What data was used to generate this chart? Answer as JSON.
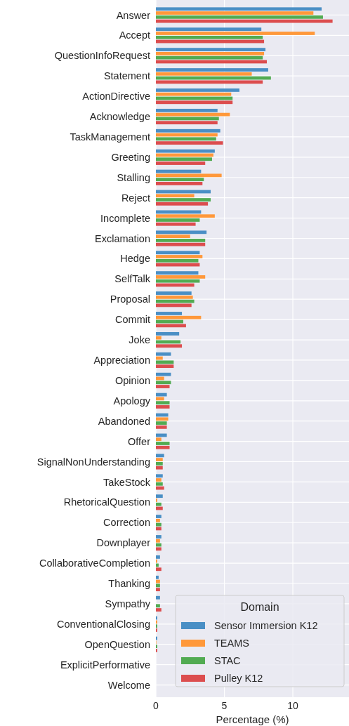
{
  "chart_data": {
    "type": "bar",
    "orientation": "horizontal",
    "xlabel": "Percentage (%)",
    "legend_title": "Domain",
    "legend": "bottom right",
    "grid": true,
    "categories": [
      "Answer",
      "Accept",
      "QuestionInfoRequest",
      "Statement",
      "ActionDirective",
      "Acknowledge",
      "TaskManagement",
      "Greeting",
      "Stalling",
      "Reject",
      "Incomplete",
      "Exclamation",
      "Hedge",
      "SelfTalk",
      "Proposal",
      "Commit",
      "Joke",
      "Appreciation",
      "Opinion",
      "Apology",
      "Abandoned",
      "Offer",
      "SignalNonUnderstanding",
      "TakeStock",
      "RhetoricalQuestion",
      "Correction",
      "Downplayer",
      "CollaborativeCompletion",
      "Thanking",
      "Sympathy",
      "ConventionalClosing",
      "OpenQuestion",
      "ExplicitPerformative",
      "Welcome"
    ],
    "series": [
      {
        "name": "Sensor Immersion K12",
        "color": "#4a8fc5",
        "values": [
          12.1,
          7.7,
          8.0,
          8.2,
          6.1,
          4.5,
          4.7,
          4.3,
          3.3,
          4.0,
          3.3,
          3.7,
          3.2,
          3.1,
          2.6,
          1.9,
          1.7,
          1.1,
          1.1,
          0.8,
          0.9,
          0.8,
          0.6,
          0.5,
          0.5,
          0.4,
          0.4,
          0.3,
          0.2,
          0.3,
          0.1,
          0.1,
          0,
          0
        ]
      },
      {
        "name": "TEAMS",
        "color": "#ff983a",
        "values": [
          11.5,
          11.6,
          7.9,
          7.0,
          5.5,
          5.4,
          4.5,
          4.2,
          4.8,
          2.8,
          4.3,
          2.5,
          3.4,
          3.6,
          2.7,
          3.3,
          0.4,
          0.5,
          0.6,
          0.6,
          0.9,
          0.4,
          0.5,
          0.4,
          0.1,
          0.3,
          0.3,
          0.1,
          0.3,
          0,
          0.1,
          0.03,
          0,
          0
        ]
      },
      {
        "name": "STAC",
        "color": "#52ab52",
        "values": [
          12.2,
          7.8,
          7.8,
          8.4,
          5.6,
          4.6,
          4.4,
          4.1,
          3.5,
          4.0,
          3.2,
          3.6,
          3.1,
          3.2,
          2.8,
          2.0,
          1.8,
          1.3,
          1.1,
          1.0,
          0.8,
          1.0,
          0.5,
          0.5,
          0.4,
          0.4,
          0.4,
          0.2,
          0.3,
          0.3,
          0.1,
          0.1,
          0,
          0
        ]
      },
      {
        "name": "Pulley K12",
        "color": "#dc4d4e",
        "values": [
          12.9,
          7.9,
          8.1,
          7.8,
          5.6,
          4.5,
          4.9,
          3.6,
          3.4,
          3.8,
          2.9,
          3.6,
          3.2,
          2.8,
          2.6,
          2.2,
          1.9,
          1.3,
          1.0,
          1.0,
          0.8,
          1.0,
          0.5,
          0.6,
          0.5,
          0.4,
          0.4,
          0.4,
          0.3,
          0.4,
          0.1,
          0.1,
          0,
          0
        ]
      }
    ],
    "xlim": [
      0,
      14.1
    ],
    "xticks": [
      0,
      5,
      10
    ]
  }
}
